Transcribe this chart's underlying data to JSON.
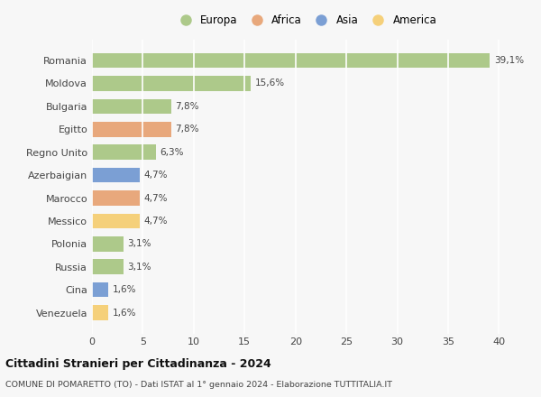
{
  "categories": [
    "Romania",
    "Moldova",
    "Bulgaria",
    "Egitto",
    "Regno Unito",
    "Azerbaigian",
    "Marocco",
    "Messico",
    "Polonia",
    "Russia",
    "Cina",
    "Venezuela"
  ],
  "values": [
    39.1,
    15.6,
    7.8,
    7.8,
    6.3,
    4.7,
    4.7,
    4.7,
    3.1,
    3.1,
    1.6,
    1.6
  ],
  "labels": [
    "39,1%",
    "15,6%",
    "7,8%",
    "7,8%",
    "6,3%",
    "4,7%",
    "4,7%",
    "4,7%",
    "3,1%",
    "3,1%",
    "1,6%",
    "1,6%"
  ],
  "continents": [
    "Europa",
    "Europa",
    "Europa",
    "Africa",
    "Europa",
    "Asia",
    "Africa",
    "America",
    "Europa",
    "Europa",
    "Asia",
    "America"
  ],
  "colors": {
    "Europa": "#adc98a",
    "Africa": "#e8a87c",
    "Asia": "#7b9fd4",
    "America": "#f5d07a"
  },
  "legend_order": [
    "Europa",
    "Africa",
    "Asia",
    "America"
  ],
  "title": "Cittadini Stranieri per Cittadinanza - 2024",
  "subtitle": "COMUNE DI POMARETTO (TO) - Dati ISTAT al 1° gennaio 2024 - Elaborazione TUTTITALIA.IT",
  "xlim": [
    0,
    42
  ],
  "xticks": [
    0,
    5,
    10,
    15,
    20,
    25,
    30,
    35,
    40
  ],
  "background_color": "#f7f7f7",
  "grid_color": "#ffffff",
  "bar_height": 0.65
}
